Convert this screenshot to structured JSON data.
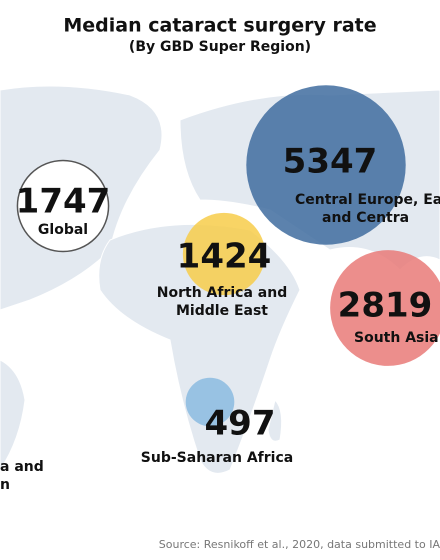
{
  "title": "Median cataract surgery rate",
  "subtitle": "(By GBD Super Region)",
  "regions": [
    {
      "value": 1747,
      "label": [
        "Global"
      ],
      "color": "#ffffff"
    },
    {
      "value": 5347,
      "label": [
        "Central Europe, Eas",
        "and Centra"
      ],
      "color": "#3f6c9f"
    },
    {
      "value": 1424,
      "label": [
        "North Africa and",
        "Middle East"
      ],
      "color": "#f7cc4a"
    },
    {
      "value": 2819,
      "label": [
        "South Asia"
      ],
      "color": "#e97a78"
    },
    {
      "value": 497,
      "label": [
        "Sub-Saharan Africa"
      ],
      "color": "#8bbbe0"
    },
    {
      "label": [
        "a and",
        "n"
      ]
    }
  ],
  "source": "Source: Resnikoff et al., 2020, data submitted to IA"
}
